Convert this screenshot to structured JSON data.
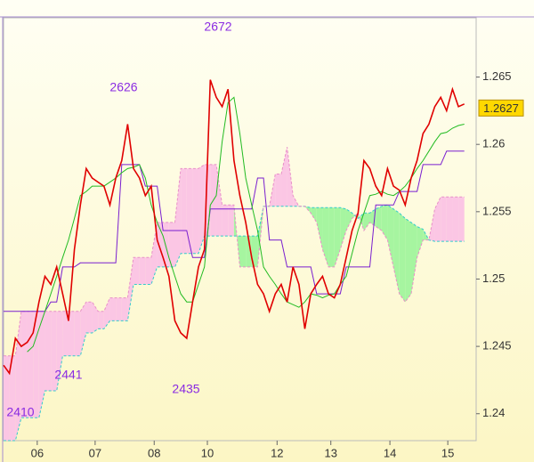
{
  "chart_data": {
    "type": "line",
    "x": [
      0,
      1,
      2,
      3,
      4,
      5,
      6,
      7,
      8,
      9,
      10,
      11,
      12,
      13,
      14,
      15,
      16,
      17,
      18,
      19,
      20,
      21,
      22,
      23,
      24,
      25,
      26,
      27,
      28,
      29,
      30,
      31,
      32,
      33,
      34,
      35,
      36,
      37,
      38,
      39,
      40,
      41,
      42,
      43,
      44,
      45,
      46,
      47,
      48,
      49,
      50,
      51,
      52,
      53,
      54,
      55,
      56,
      57,
      58,
      59,
      60,
      61,
      62,
      63,
      64,
      65,
      66,
      67,
      68,
      69,
      70,
      71,
      72,
      73,
      74,
      75,
      76,
      77,
      78
    ],
    "xlim": [
      0,
      80
    ],
    "xticks": [
      {
        "value": 5.7,
        "label": "06"
      },
      {
        "value": 15.5,
        "label": "07"
      },
      {
        "value": 25.5,
        "label": "08"
      },
      {
        "value": 34.5,
        "label": "10"
      },
      {
        "value": 46.3,
        "label": "12"
      },
      {
        "value": 55.4,
        "label": "13"
      },
      {
        "value": 65.4,
        "label": "14"
      },
      {
        "value": 75.2,
        "label": "15"
      }
    ],
    "ylim": [
      1.238,
      1.2694
    ],
    "yticks": [
      1.24,
      1.245,
      1.25,
      1.255,
      1.26,
      1.265
    ],
    "cloud": {
      "up_color": "#a6f5a0",
      "down_color": "#fbc6e4",
      "span_a": {
        "color": "#33cccc",
        "values": [
          1.238,
          1.238,
          1.238,
          1.2397,
          1.2397,
          1.2397,
          1.2397,
          1.2417,
          1.2417,
          1.2417,
          1.2443,
          1.2443,
          1.2443,
          1.2443,
          1.246,
          1.246,
          1.2463,
          1.2463,
          1.2469,
          1.2469,
          1.2469,
          1.2469,
          1.2496,
          1.2496,
          1.2496,
          1.2496,
          1.2509,
          1.2509,
          1.2509,
          1.2509,
          1.2519,
          1.2519,
          1.2519,
          1.2519,
          1.2532,
          1.2532,
          1.2532,
          1.2532,
          1.2532,
          1.2532,
          1.2532,
          1.2532,
          1.2532,
          1.2532,
          1.2554,
          1.2554,
          1.2554,
          1.2554,
          1.2554,
          1.2554,
          1.2554,
          1.2554,
          1.2553,
          1.2553,
          1.2553,
          1.2553,
          1.2553,
          1.2553,
          1.2552,
          1.2549,
          1.2545,
          1.2549,
          1.2549,
          1.2552,
          1.2554,
          1.2555,
          1.2552,
          1.2549,
          1.2545,
          1.2542,
          1.2539,
          1.2537,
          1.2529,
          1.2528,
          1.2528,
          1.2528,
          1.2528,
          1.2528,
          1.2528
        ]
      },
      "span_b": {
        "color": "#e890c8",
        "values": [
          1.2443,
          1.2443,
          1.2443,
          1.2476,
          1.2476,
          1.2476,
          1.2476,
          1.2476,
          1.2476,
          1.2476,
          1.2476,
          1.2476,
          1.2476,
          1.2476,
          1.2483,
          1.2483,
          1.2476,
          1.2476,
          1.2486,
          1.2486,
          1.2486,
          1.2486,
          1.2516,
          1.2516,
          1.2516,
          1.2516,
          1.2542,
          1.2542,
          1.2542,
          1.2542,
          1.2582,
          1.2582,
          1.2582,
          1.2582,
          1.2585,
          1.2585,
          1.2585,
          1.2555,
          1.2555,
          1.2555,
          1.2509,
          1.2509,
          1.2509,
          1.2509,
          1.2554,
          1.2554,
          1.2578,
          1.2578,
          1.2598,
          1.2562,
          1.2554,
          1.2554,
          1.2549,
          1.2542,
          1.2522,
          1.2509,
          1.2509,
          1.2522,
          1.2536,
          1.2545,
          1.2549,
          1.2536,
          1.2542,
          1.2539,
          1.2536,
          1.2529,
          1.2509,
          1.2489,
          1.2483,
          1.2489,
          1.2516,
          1.2529,
          1.2529,
          1.2552,
          1.2561,
          1.2561,
          1.2561,
          1.2561,
          1.2561
        ]
      }
    },
    "series": [
      {
        "color": "#e00000",
        "values": [
          1.2436,
          1.243,
          1.2456,
          1.245,
          1.2453,
          1.246,
          1.2483,
          1.2502,
          1.2496,
          1.2509,
          1.2489,
          1.2469,
          1.2522,
          1.2555,
          1.2582,
          1.2575,
          1.2572,
          1.2569,
          1.2555,
          1.2575,
          1.2588,
          1.2615,
          1.2582,
          1.2575,
          1.2562,
          1.2569,
          1.2529,
          1.2516,
          1.2502,
          1.2469,
          1.246,
          1.2456,
          1.2483,
          1.2509,
          1.2522,
          1.2648,
          1.2635,
          1.2628,
          1.2641,
          1.2588,
          1.2562,
          1.2542,
          1.2516,
          1.2496,
          1.2489,
          1.2476,
          1.2489,
          1.2496,
          1.2483,
          1.2509,
          1.2496,
          1.2463,
          1.2489,
          1.2496,
          1.2502,
          1.2489,
          1.2486,
          1.2496,
          1.2516,
          1.2536,
          1.2549,
          1.2588,
          1.2582,
          1.2569,
          1.2562,
          1.2582,
          1.2569,
          1.2566,
          1.2555,
          1.2575,
          1.2588,
          1.2608,
          1.2615,
          1.2628,
          1.2635,
          1.2625,
          1.2641,
          1.2628,
          1.263
        ]
      },
      {
        "color": "#22bb22",
        "values": [
          null,
          null,
          null,
          null,
          1.2446,
          1.245,
          1.2463,
          1.2476,
          1.2489,
          1.2502,
          1.2516,
          1.2529,
          1.2545,
          1.2562,
          1.2565,
          1.2569,
          1.2569,
          1.2569,
          1.2572,
          1.2575,
          1.2579,
          1.2582,
          1.2583,
          1.2585,
          1.2575,
          1.2555,
          1.2542,
          1.2532,
          1.2516,
          1.2502,
          1.2489,
          1.2483,
          1.2483,
          1.2496,
          1.2509,
          1.2555,
          1.2562,
          1.2602,
          1.2631,
          1.2635,
          1.2608,
          1.2575,
          1.2555,
          1.2536,
          1.2509,
          1.2502,
          1.2496,
          1.2489,
          1.2483,
          1.2481,
          1.2479,
          1.2483,
          1.2489,
          1.2488,
          1.2486,
          1.2488,
          1.2489,
          1.2496,
          1.2502,
          1.2519,
          1.2536,
          1.2549,
          1.2562,
          1.2563,
          1.2565,
          1.2563,
          1.2562,
          1.2565,
          1.2569,
          1.2575,
          1.2582,
          1.2588,
          1.2595,
          1.2602,
          1.2608,
          1.2609,
          1.2612,
          1.2614,
          1.2615
        ]
      },
      {
        "color": "#7a1fcf",
        "values": [
          1.2476,
          1.2476,
          1.2476,
          1.2476,
          1.2476,
          1.2476,
          1.2476,
          1.2476,
          1.2483,
          1.2483,
          1.2509,
          1.2509,
          1.2509,
          1.2512,
          1.2512,
          1.2512,
          1.2512,
          1.2512,
          1.2512,
          1.2512,
          1.2585,
          1.2585,
          1.2585,
          1.2585,
          1.2569,
          1.2569,
          1.2569,
          1.2536,
          1.2536,
          1.2536,
          1.2536,
          1.2536,
          1.2516,
          1.2516,
          1.2516,
          1.2552,
          1.2552,
          1.2552,
          1.2552,
          1.2552,
          1.2552,
          1.2552,
          1.2552,
          1.2575,
          1.2575,
          1.2529,
          1.2529,
          1.2529,
          1.2509,
          1.2509,
          1.2509,
          1.2509,
          1.2509,
          1.2489,
          1.2489,
          1.2489,
          1.2489,
          1.2489,
          1.2509,
          1.2509,
          1.2509,
          1.2509,
          1.2509,
          1.2555,
          1.2555,
          1.2555,
          1.2555,
          1.2565,
          1.2565,
          1.2565,
          1.2565,
          1.2585,
          1.2585,
          1.2585,
          1.2585,
          1.2595,
          1.2595,
          1.2595,
          1.2595
        ]
      }
    ],
    "annotations": [
      "2672",
      "2626",
      "2441",
      "2435",
      "2410"
    ],
    "annotation_color": "#8a2be2",
    "last_price": {
      "value": 1.2627,
      "color": "#ffd800"
    }
  }
}
